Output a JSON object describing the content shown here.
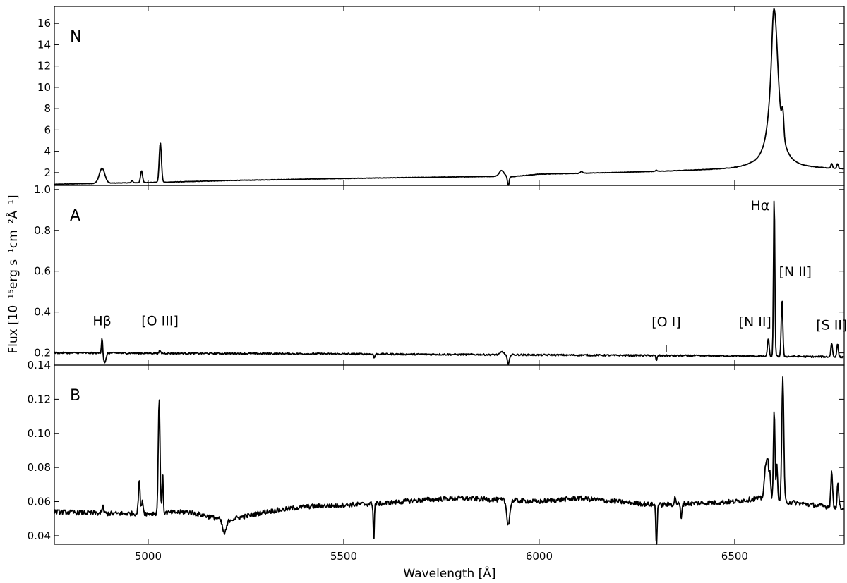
{
  "chart_data": {
    "type": "line",
    "xlabel": "Wavelength [Å]",
    "ylabel": "Flux [10⁻¹⁵erg s⁻¹cm⁻²Å⁻¹]",
    "xlim": [
      4760,
      6780
    ],
    "x_ticks": [
      5000,
      5500,
      6000,
      6500
    ],
    "shared_x_axis": true,
    "grid": false,
    "panels": [
      {
        "label": "N",
        "ylim": [
          0.8,
          17.6
        ],
        "y_ticks": [
          2,
          4,
          6,
          8,
          10,
          12,
          14,
          16
        ],
        "y_tick_labels": [
          "2",
          "4",
          "6",
          "8",
          "10",
          "12",
          "14",
          "16"
        ],
        "baseline": [
          [
            4760,
            0.9
          ],
          [
            4880,
            1.0
          ],
          [
            5040,
            1.1
          ],
          [
            5200,
            1.25
          ],
          [
            5500,
            1.45
          ],
          [
            5900,
            1.65
          ],
          [
            5925,
            1.6
          ],
          [
            6000,
            1.85
          ],
          [
            6200,
            2.0
          ],
          [
            6500,
            2.3
          ],
          [
            6540,
            2.4
          ],
          [
            6700,
            2.35
          ],
          [
            6780,
            2.3
          ]
        ],
        "lines": [
          {
            "x": 4882,
            "amp": 1.4,
            "w": 7
          },
          {
            "x": 4959,
            "amp": 0.2,
            "w": 2
          },
          {
            "x": 4983,
            "amp": 1.1,
            "w": 2.5
          },
          {
            "x": 5031,
            "amp": 3.7,
            "w": 2.8
          },
          {
            "x": 5904,
            "amp": 0.55,
            "w": 6
          },
          {
            "x": 5921,
            "amp": -0.9,
            "w": 2
          },
          {
            "x": 6108,
            "amp": 0.15,
            "w": 3
          },
          {
            "x": 6300,
            "amp": 0.1,
            "w": 2
          },
          {
            "x": 6602,
            "amp": 14.5,
            "w": 12,
            "profile": "lorentzian"
          },
          {
            "x": 6598,
            "amp": 1.2,
            "w": 2.5
          },
          {
            "x": 6623,
            "amp": 2.2,
            "w": 2.5
          },
          {
            "x": 6748,
            "amp": 0.45,
            "w": 2
          },
          {
            "x": 6763,
            "amp": 0.45,
            "w": 2
          }
        ],
        "noise": 0.02
      },
      {
        "label": "A",
        "ylim": [
          0.14,
          1.02
        ],
        "y_ticks": [
          0.2,
          0.4,
          0.6,
          0.8,
          1.0
        ],
        "y_tick_labels": [
          "0.2",
          "0.4",
          "0.6",
          "0.8",
          "1.0"
        ],
        "baseline": [
          [
            4760,
            0.2
          ],
          [
            5500,
            0.195
          ],
          [
            6000,
            0.19
          ],
          [
            6500,
            0.185
          ],
          [
            6780,
            0.18
          ]
        ],
        "lines": [
          {
            "x": 4882,
            "amp": 0.08,
            "w": 1.5
          },
          {
            "x": 4889,
            "amp": -0.05,
            "w": 3
          },
          {
            "x": 5030,
            "amp": 0.012,
            "w": 2
          },
          {
            "x": 5578,
            "amp": -0.02,
            "w": 1.5
          },
          {
            "x": 5905,
            "amp": 0.015,
            "w": 4
          },
          {
            "x": 5921,
            "amp": -0.05,
            "w": 2.5
          },
          {
            "x": 6300,
            "amp": -0.025,
            "w": 1.5
          },
          {
            "x": 6586,
            "amp": 0.09,
            "w": 2
          },
          {
            "x": 6601,
            "amp": 0.79,
            "w": 1.7
          },
          {
            "x": 6621,
            "amp": 0.28,
            "w": 2
          },
          {
            "x": 6748,
            "amp": 0.07,
            "w": 2
          },
          {
            "x": 6763,
            "amp": 0.065,
            "w": 2
          }
        ],
        "noise": 0.004,
        "annotations": [
          {
            "text": "Hβ",
            "x": 4882,
            "y": 0.335
          },
          {
            "text": "[O III]",
            "x": 5030,
            "y": 0.335
          },
          {
            "text": "[O I]",
            "x": 6325,
            "y": 0.33,
            "tick_from": 0.24,
            "tick_to": 0.205
          },
          {
            "text": "[N II]",
            "x": 6552,
            "y": 0.33
          },
          {
            "text": "Hα",
            "x": 6565,
            "y": 0.9
          },
          {
            "text": "[N II]",
            "x": 6655,
            "y": 0.575
          },
          {
            "text": "[S II]",
            "x": 6748,
            "y": 0.315
          }
        ]
      },
      {
        "label": "B",
        "ylim": [
          0.035,
          0.14
        ],
        "y_ticks": [
          0.04,
          0.06,
          0.08,
          0.1,
          0.12,
          0.14
        ],
        "y_tick_labels": [
          "0.04",
          "0.06",
          "0.08",
          "0.10",
          "0.12",
          "0.14"
        ],
        "baseline": [
          [
            4760,
            0.054
          ],
          [
            4900,
            0.053
          ],
          [
            5000,
            0.053
          ],
          [
            5100,
            0.054
          ],
          [
            5200,
            0.049
          ],
          [
            5300,
            0.054
          ],
          [
            5400,
            0.057
          ],
          [
            5500,
            0.058
          ],
          [
            5600,
            0.059
          ],
          [
            5700,
            0.061
          ],
          [
            5800,
            0.062
          ],
          [
            5900,
            0.061
          ],
          [
            6000,
            0.06
          ],
          [
            6100,
            0.062
          ],
          [
            6200,
            0.06
          ],
          [
            6300,
            0.058
          ],
          [
            6400,
            0.059
          ],
          [
            6500,
            0.06
          ],
          [
            6560,
            0.062
          ],
          [
            6700,
            0.058
          ],
          [
            6780,
            0.056
          ]
        ],
        "lines": [
          {
            "x": 4884,
            "amp": 0.004,
            "w": 2
          },
          {
            "x": 4977,
            "amp": 0.02,
            "w": 2
          },
          {
            "x": 4985,
            "amp": 0.008,
            "w": 2
          },
          {
            "x": 5028,
            "amp": 0.068,
            "w": 2.2
          },
          {
            "x": 5037,
            "amp": 0.022,
            "w": 1.5
          },
          {
            "x": 5195,
            "amp": -0.008,
            "w": 5
          },
          {
            "x": 5577,
            "amp": -0.022,
            "w": 1.3
          },
          {
            "x": 5921,
            "amp": -0.014,
            "w": 4
          },
          {
            "x": 6300,
            "amp": -0.025,
            "w": 1.5
          },
          {
            "x": 6363,
            "amp": -0.01,
            "w": 1.5
          },
          {
            "x": 6348,
            "amp": 0.004,
            "w": 2
          },
          {
            "x": 6580,
            "amp": 0.02,
            "w": 4
          },
          {
            "x": 6585,
            "amp": 0.014,
            "w": 2
          },
          {
            "x": 6590,
            "amp": 0.016,
            "w": 2
          },
          {
            "x": 6601,
            "amp": 0.052,
            "w": 2
          },
          {
            "x": 6608,
            "amp": 0.02,
            "w": 2
          },
          {
            "x": 6623,
            "amp": 0.073,
            "w": 2.5
          },
          {
            "x": 6748,
            "amp": 0.021,
            "w": 2.2
          },
          {
            "x": 6764,
            "amp": 0.015,
            "w": 2
          }
        ],
        "noise": 0.0014
      }
    ]
  }
}
